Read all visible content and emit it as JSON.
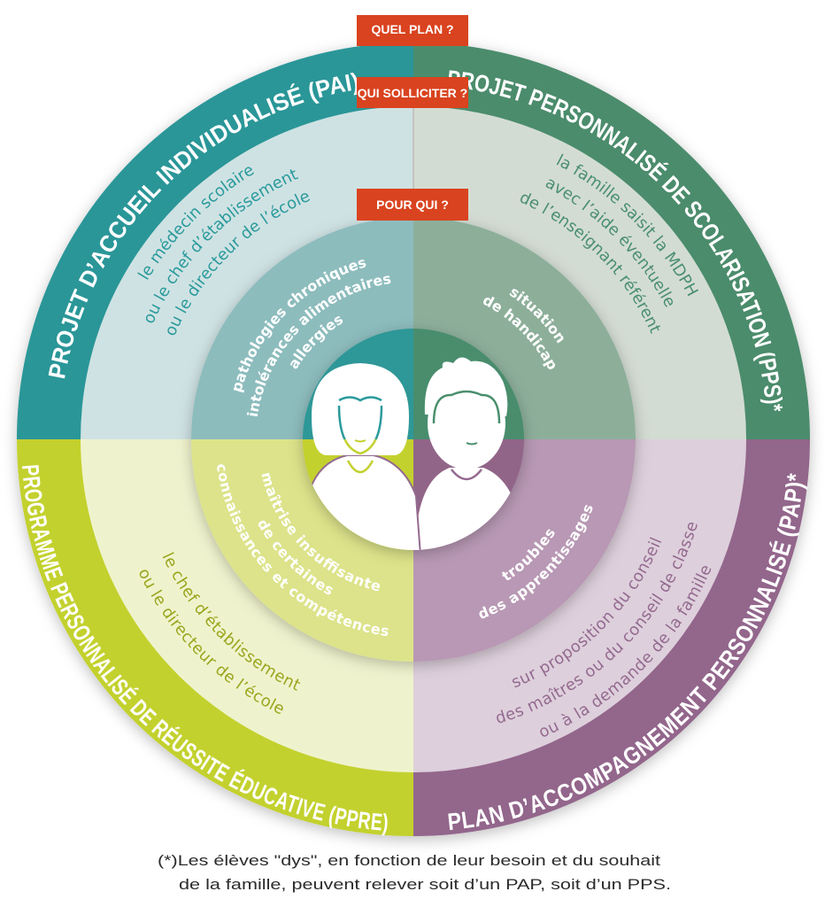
{
  "labels": {
    "quel_plan": "QUEL PLAN ?",
    "qui_solliciter": "QUI SOLLICITER ?",
    "pour_qui": "POUR QUI ?"
  },
  "tag_color": "#d9431f",
  "quadrants": {
    "pai": {
      "plan": "PROJET D’ACCUEIL INDIVIDUALISÉ (PAI)",
      "qui": [
        "le médecin scolaire",
        "ou le chef d’établissement",
        "ou le directeur de l’école"
      ],
      "pour": [
        "pathologies chroniques",
        "intolérances alimentaires",
        "allergies"
      ],
      "colors": {
        "outer": "#2a9698",
        "middle": "#cfe2e3",
        "inner": "#8dbcbd",
        "core": "#2d9797",
        "text": "#2a9a9c"
      }
    },
    "pps": {
      "plan": "PROJET PERSONNALISÉ DE SCOLARISATION (PPS)*",
      "qui": [
        "la famille saisit la MDPH",
        "avec l’aide éventuelle",
        "de l’enseignant référent"
      ],
      "pour": [
        "situation",
        "de handicap"
      ],
      "colors": {
        "outer": "#4b8c6c",
        "middle": "#d3dcd3",
        "inner": "#8daf9a",
        "core": "#4a8d6d",
        "text": "#4a8f6e"
      }
    },
    "ppre": {
      "plan": "PROGRAMME PERSONNALISÉ DE RÉUSSITE ÉDUCATIVE (PPRE)",
      "qui": [
        "le chef d’établissement",
        "ou le directeur de l’école"
      ],
      "pour": [
        "maîtrise insuffisante",
        "de certaines",
        "connaissances et compétences"
      ],
      "colors": {
        "outer": "#c3d12f",
        "middle": "#eff3cd",
        "inner": "#dce38a",
        "core": "#c3d12f",
        "text": "#9aa61e"
      }
    },
    "pap": {
      "plan": "PLAN D’ACCOMPAGNEMENT PERSONNALISÉ (PAP)*",
      "qui": [
        "sur proposition du conseil",
        "des maîtres ou du conseil de classe",
        "ou à la demande de la famille"
      ],
      "pour": [
        "troubles",
        "des apprentissages"
      ],
      "colors": {
        "outer": "#93668c",
        "middle": "#ddcfdb",
        "inner": "#b898b4",
        "core": "#916588",
        "text": "#946a90"
      }
    }
  },
  "footnote": [
    "(*)Les élèves \"dys\", en fonction de leur besoin et du souhait",
    "de la famille, peuvent relever soit d’un PAP, soit d’un PPS."
  ]
}
